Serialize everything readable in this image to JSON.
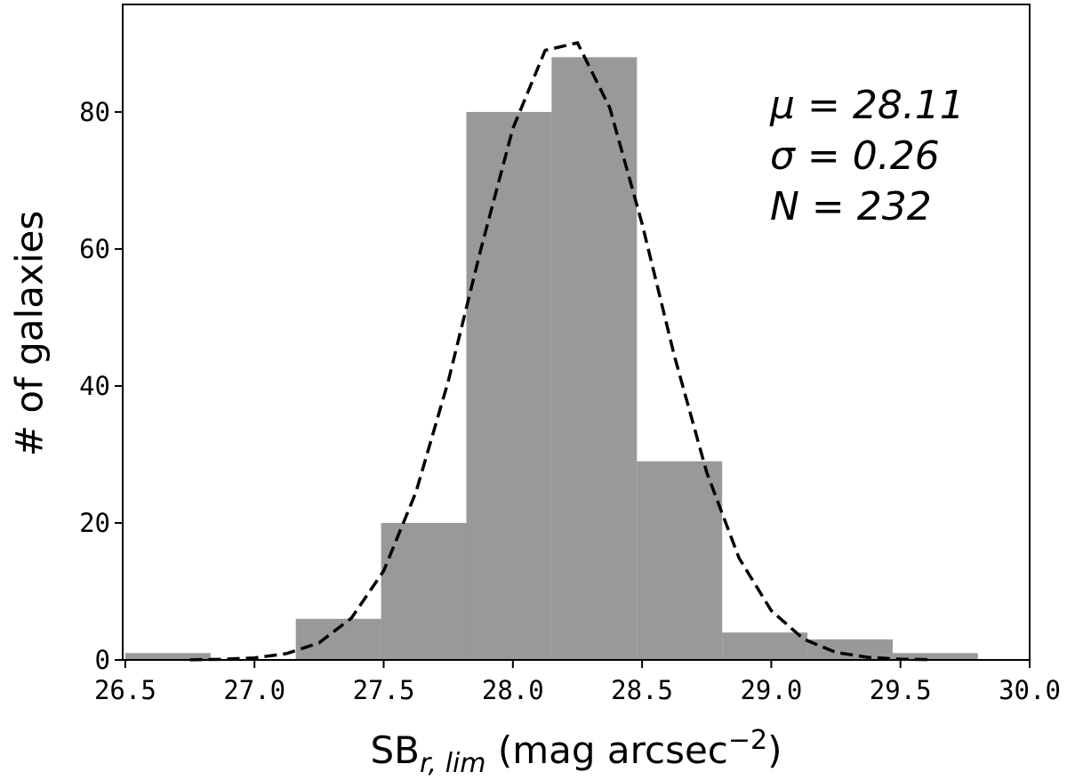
{
  "chart_data": {
    "type": "histogram",
    "bins": [
      26.5,
      26.83,
      27.16,
      27.49,
      27.82,
      28.15,
      28.48,
      28.81,
      29.14,
      29.47,
      29.8
    ],
    "values": [
      1,
      0,
      6,
      20,
      80,
      88,
      29,
      4,
      3,
      1
    ],
    "color": "#999999",
    "fit": {
      "x": [
        26.75,
        26.875,
        27.0,
        27.125,
        27.25,
        27.375,
        27.5,
        27.625,
        27.75,
        27.875,
        28.0,
        28.125,
        28.25,
        28.375,
        28.5,
        28.625,
        28.75,
        28.875,
        29.0,
        29.125,
        29.25,
        29.375,
        29.5,
        29.625
      ],
      "values": [
        0.02,
        0.09,
        0.3,
        0.93,
        2.5,
        6.1,
        13.0,
        24.5,
        40.7,
        59.8,
        77.6,
        89.0,
        90.1,
        80.6,
        63.7,
        44.4,
        27.4,
        14.9,
        7.2,
        3.05,
        1.1,
        0.38,
        0.11,
        0.03
      ],
      "color": "#000000",
      "dashed": true
    },
    "xlim": [
      26.49,
      30.0
    ],
    "ylim": [
      0,
      95.7
    ],
    "xticks": [
      26.5,
      {
        "value": 27,
        "label": "27.0"
      },
      27.5,
      {
        "value": 28,
        "label": "28.0"
      },
      28.5,
      {
        "value": 29,
        "label": "29.0"
      },
      29.5,
      {
        "value": 30,
        "label": "30.0"
      }
    ],
    "yticks": [
      0,
      20,
      40,
      60,
      80
    ],
    "y_label": "# of galaxies",
    "x_label": {
      "base": "SB",
      "sub": "r, lim",
      "main": " (mag arcsec",
      "sup": "−2",
      "close": ")"
    },
    "annotations": [
      "μ = 28.11",
      "σ = 0.26",
      "N = 232"
    ]
  }
}
